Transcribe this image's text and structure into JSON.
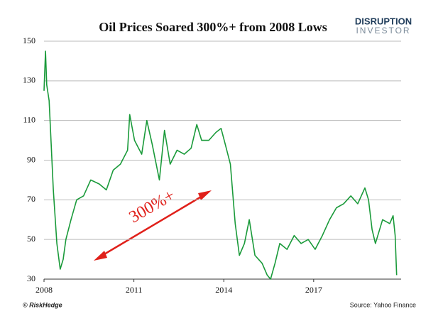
{
  "chart_data": {
    "type": "line",
    "title": "Oil Prices Soared 300%+ from 2008 Lows",
    "logo": [
      "DISRUPTION",
      "INVESTOR"
    ],
    "annotation": "300%+",
    "credit": "© RiskHedge",
    "source": "Source: Yahoo Finance",
    "color": "#1a9a3a",
    "x": [
      2008.0,
      2008.05,
      2008.09,
      2008.17,
      2008.24,
      2008.31,
      2008.43,
      2008.54,
      2008.64,
      2008.73,
      2008.9,
      2009.09,
      2009.32,
      2009.56,
      2009.84,
      2010.08,
      2010.31,
      2010.55,
      2010.79,
      2010.86,
      2011.02,
      2011.26,
      2011.43,
      2011.61,
      2011.85,
      2012.02,
      2012.21,
      2012.44,
      2012.68,
      2012.91,
      2013.1,
      2013.26,
      2013.5,
      2013.74,
      2013.91,
      2014.05,
      2014.22,
      2014.38,
      2014.52,
      2014.69,
      2014.85,
      2015.04,
      2015.28,
      2015.45,
      2015.56,
      2015.71,
      2015.87,
      2016.11,
      2016.35,
      2016.58,
      2016.82,
      2017.05,
      2017.29,
      2017.53,
      2017.76,
      2018.0,
      2018.24,
      2018.47,
      2018.59,
      2018.71,
      2018.83,
      2018.95,
      2019.06,
      2019.3,
      2019.54,
      2019.65,
      2019.72,
      2019.77
    ],
    "values": [
      125,
      145,
      128,
      120,
      98,
      75,
      48,
      35,
      40,
      50,
      60,
      70,
      72,
      80,
      78,
      75,
      85,
      88,
      95,
      113,
      100,
      93,
      110,
      98,
      80,
      105,
      88,
      95,
      93,
      96,
      108,
      100,
      100,
      104,
      106,
      98,
      88,
      58,
      42,
      48,
      60,
      42,
      38,
      32,
      30,
      38,
      48,
      45,
      52,
      48,
      50,
      45,
      52,
      60,
      66,
      68,
      72,
      68,
      72,
      76,
      70,
      55,
      48,
      60,
      58,
      62,
      52,
      32
    ],
    "xlim": [
      2008,
      2019.8
    ],
    "xticks": [
      2008,
      2011,
      2014,
      2017
    ],
    "ylim": [
      30,
      150
    ],
    "yticks": [
      30,
      50,
      70,
      90,
      110,
      130,
      150
    ],
    "grid": true
  }
}
